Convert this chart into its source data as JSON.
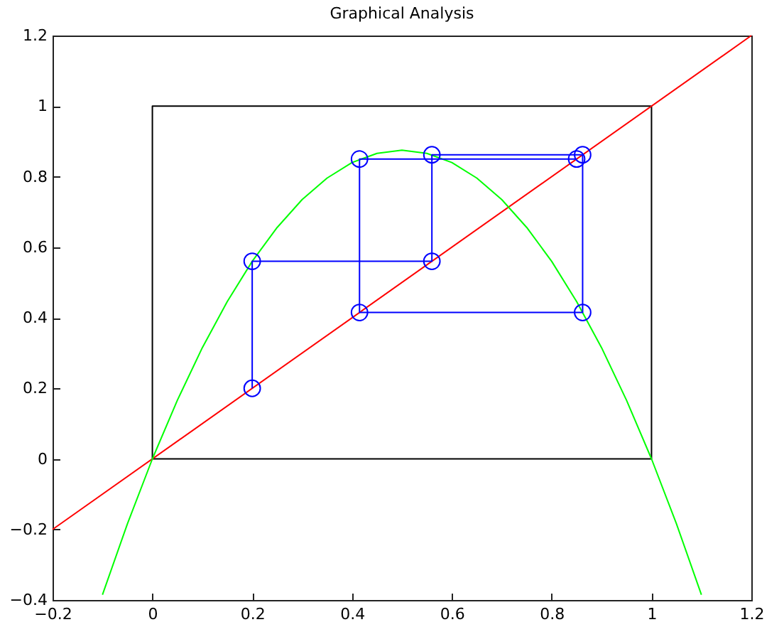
{
  "chart_data": {
    "type": "line",
    "title": "Graphical Analysis",
    "xlim": [
      -0.2,
      1.2
    ],
    "ylim": [
      -0.4,
      1.2
    ],
    "xticks": [
      -0.2,
      0,
      0.2,
      0.4,
      0.6,
      0.8,
      1,
      1.2
    ],
    "yticks": [
      -0.4,
      -0.2,
      0,
      0.2,
      0.4,
      0.6,
      0.8,
      1,
      1.2
    ],
    "grid": false,
    "marker": "none",
    "line_style": "solid",
    "series": [
      {
        "color": "#000000",
        "x": [
          0,
          1,
          1
        ],
        "values": [
          0,
          0,
          1
        ]
      },
      {
        "color": "#000000",
        "x": [
          1,
          0,
          0
        ],
        "values": [
          1,
          1,
          0
        ]
      },
      {
        "color": "#ff0000",
        "x": [
          -0.2,
          1.2
        ],
        "values": [
          -0.2,
          1.2
        ]
      },
      {
        "color": "#00ff00",
        "x": [
          -0.1,
          -0.05,
          0,
          0.05,
          0.1,
          0.15,
          0.2,
          0.25,
          0.3,
          0.35,
          0.4,
          0.45,
          0.5,
          0.55,
          0.6,
          0.65,
          0.7,
          0.75,
          0.8,
          0.85,
          0.9,
          0.95,
          1,
          1.05,
          1.1
        ],
        "values": [
          -0.385,
          -0.184,
          0,
          0.166,
          0.315,
          0.446,
          0.56,
          0.656,
          0.735,
          0.796,
          0.84,
          0.866,
          0.875,
          0.866,
          0.84,
          0.796,
          0.735,
          0.656,
          0.56,
          0.446,
          0.315,
          0.166,
          0,
          -0.184,
          -0.385
        ]
      },
      {
        "color": "#0000ff",
        "marker": "circle",
        "x": [
          0.2,
          0.2,
          0.56,
          0.56,
          0.862,
          0.862,
          0.415,
          0.415,
          0.85
        ],
        "values": [
          0.2,
          0.56,
          0.56,
          0.862,
          0.862,
          0.415,
          0.415,
          0.85,
          0.85
        ]
      }
    ]
  }
}
